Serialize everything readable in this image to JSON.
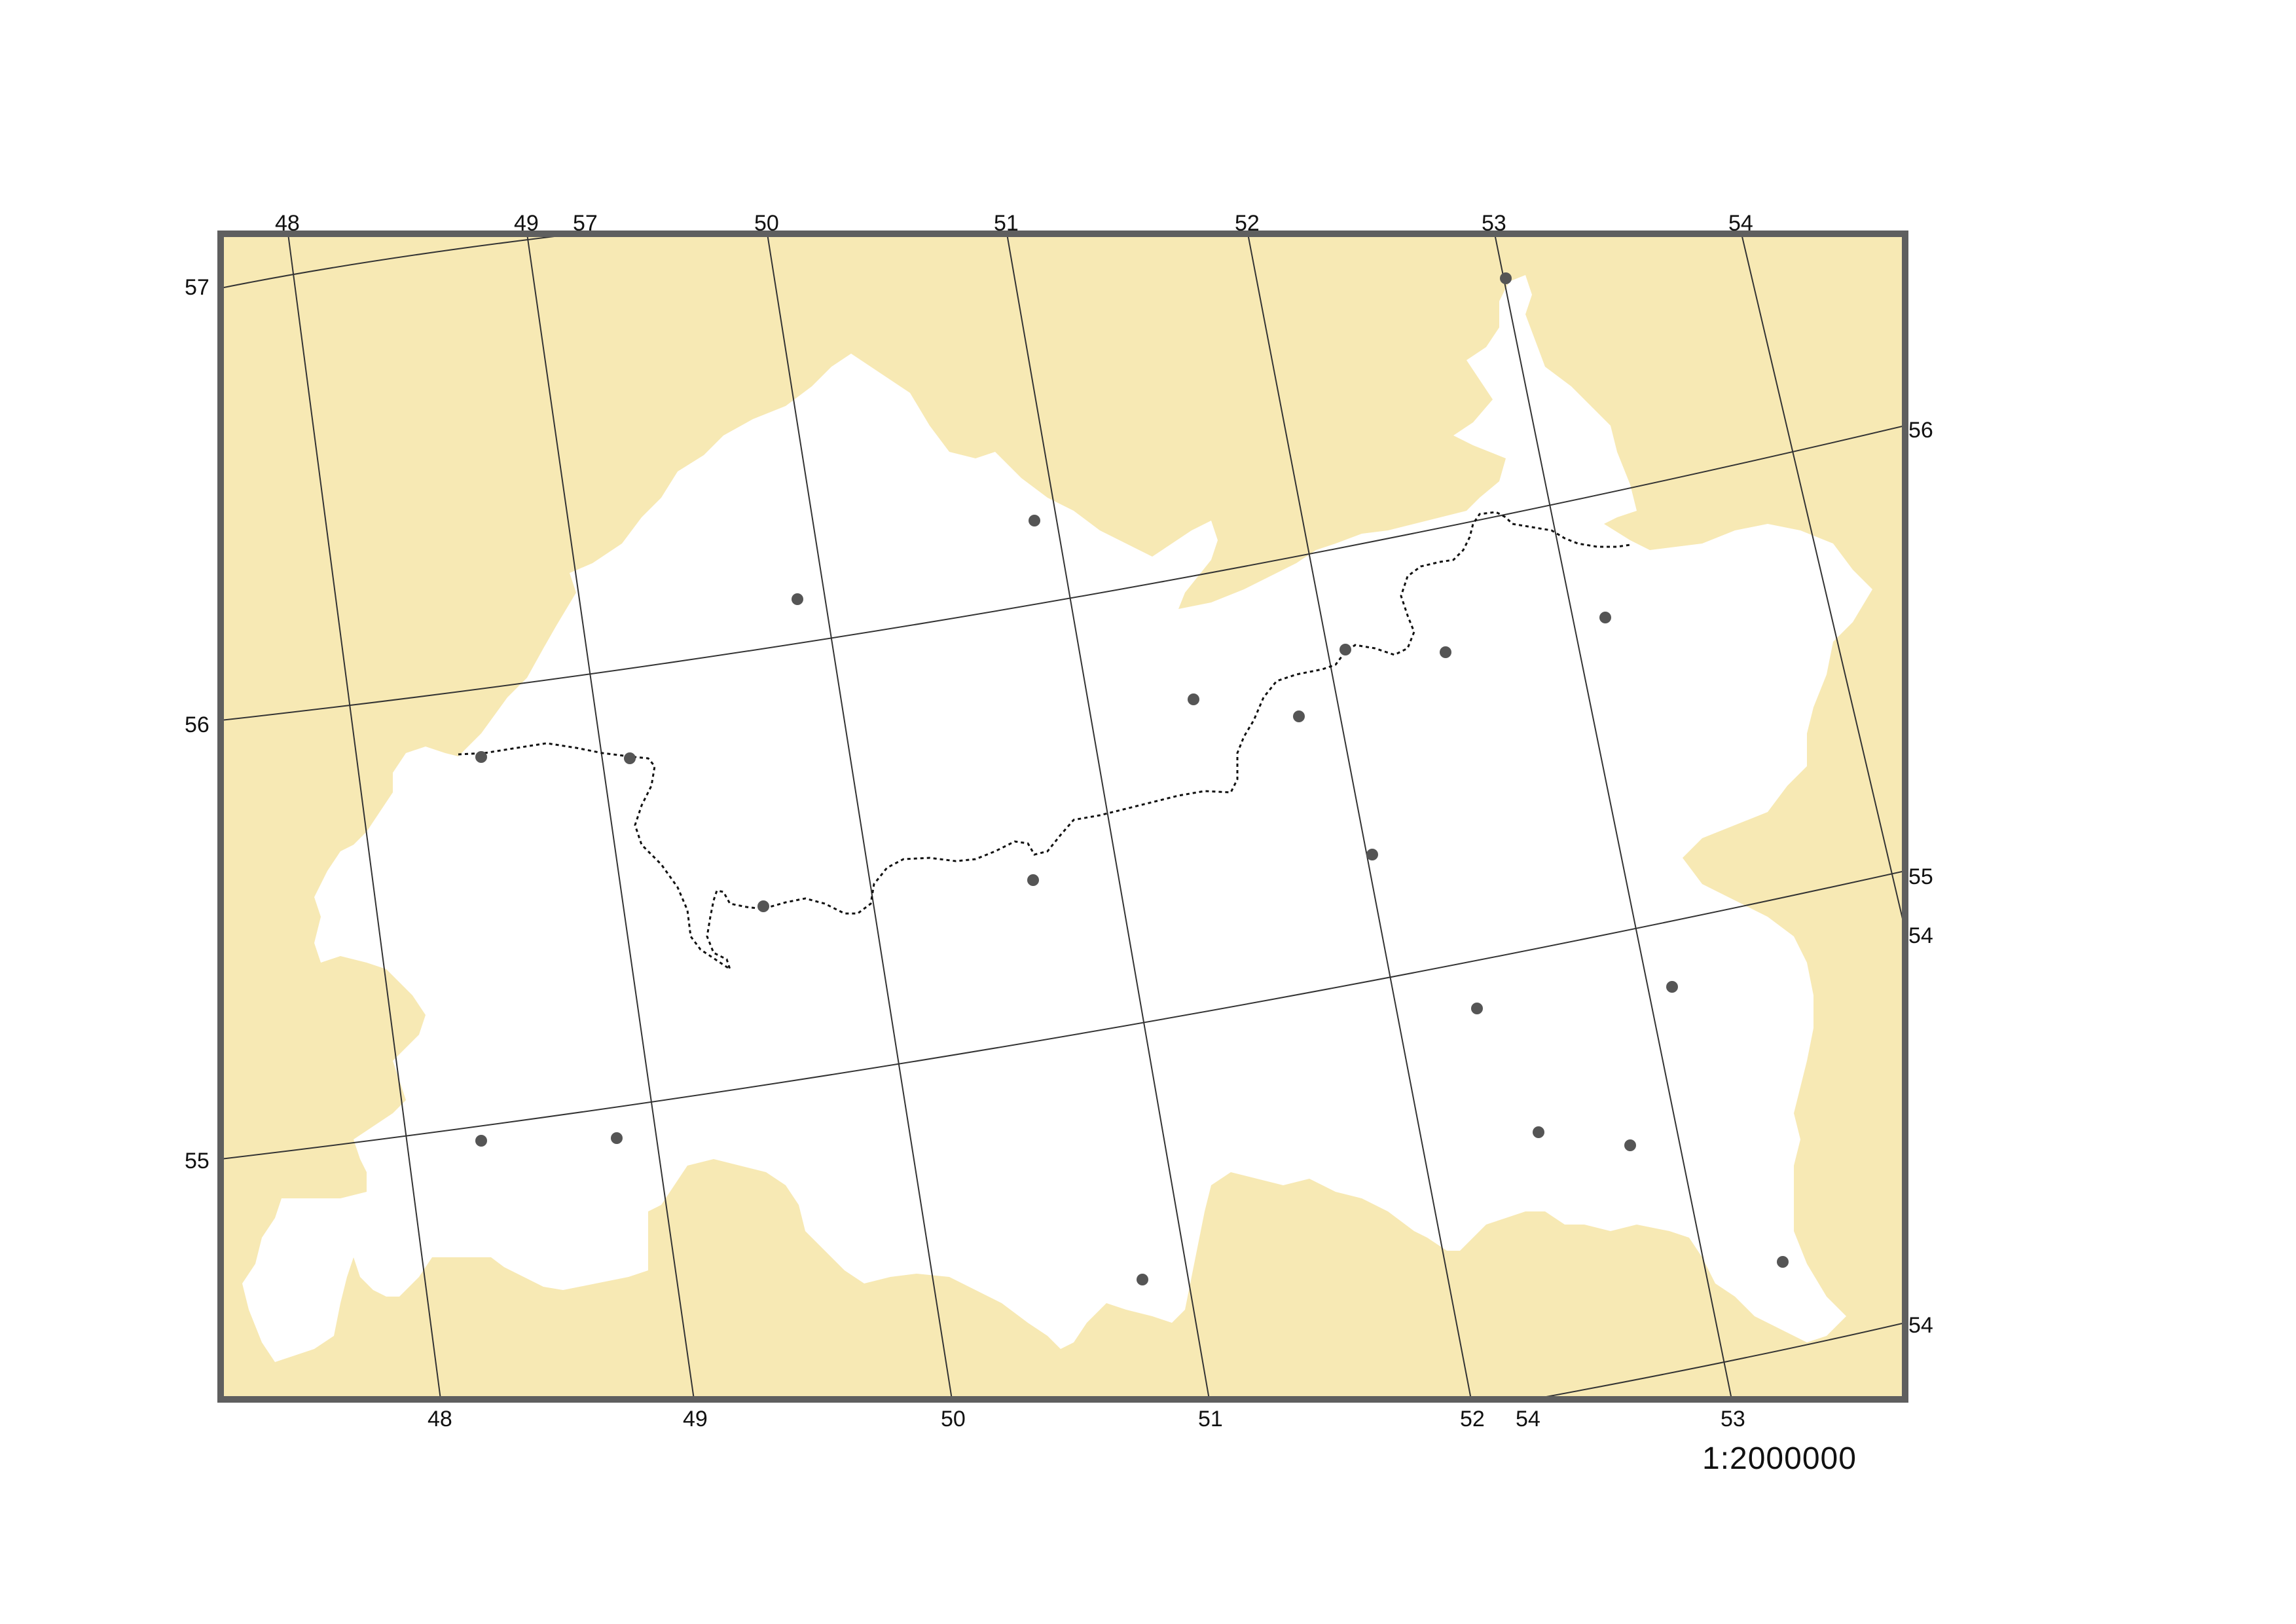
{
  "map": {
    "scale_text": "1:2000000",
    "colors": {
      "outside_area": "#f7e9b4",
      "region": "#ffffff",
      "frame": "#5f5f5f",
      "graticule": "#333333",
      "settlement": "#555555",
      "river": "#111111"
    },
    "meridian_labels": {
      "top": [
        "48",
        "49",
        "50",
        "51",
        "52",
        "53",
        "54"
      ],
      "bottom": [
        "48",
        "49",
        "50",
        "51",
        "52",
        "53"
      ]
    },
    "parallel_labels": {
      "left": [
        "57",
        "56",
        "55"
      ],
      "right": [
        "56",
        "55"
      ]
    },
    "extra_labels": {
      "top_57": "57",
      "right_54": "54",
      "right_bottom_54": "54",
      "bottom_54": "54"
    },
    "settlement_count": 20
  }
}
